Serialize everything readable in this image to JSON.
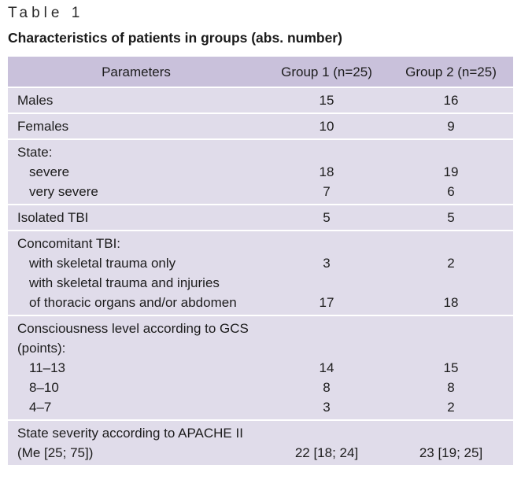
{
  "table_label": "Table 1",
  "caption": "Characteristics of patients in groups (abs. number)",
  "headers": [
    "Parameters",
    "Group 1 (n=25)",
    "Group 2 (n=25)"
  ],
  "rows": {
    "males": {
      "param": [
        "Males"
      ],
      "g1": [
        "15"
      ],
      "g2": [
        "16"
      ]
    },
    "females": {
      "param": [
        "Females"
      ],
      "g1": [
        "10"
      ],
      "g2": [
        "9"
      ]
    },
    "state": {
      "param": [
        "State:",
        "severe",
        "very severe"
      ],
      "g1": [
        "",
        "18",
        "7"
      ],
      "g2": [
        "",
        "19",
        "6"
      ]
    },
    "isolated": {
      "param": [
        "Isolated TBI"
      ],
      "g1": [
        "5"
      ],
      "g2": [
        "5"
      ]
    },
    "concomitant": {
      "param": [
        "Concomitant TBI:",
        "with skeletal trauma only",
        "with skeletal trauma and injuries",
        "of thoracic organs and/or abdomen"
      ],
      "g1": [
        "",
        "3",
        "",
        "17"
      ],
      "g2": [
        "",
        "2",
        "",
        "18"
      ]
    },
    "gcs": {
      "param": [
        "Consciousness level according to GCS",
        "(points):",
        "11–13",
        "8–10",
        "4–7"
      ],
      "g1": [
        "",
        "",
        "14",
        "8",
        "3"
      ],
      "g2": [
        "",
        "",
        "15",
        "8",
        "2"
      ]
    },
    "apache": {
      "param": [
        "State severity according to APACHE II",
        "(Me [25; 75])"
      ],
      "g1": [
        "",
        "22 [18; 24]"
      ],
      "g2": [
        "",
        "23 [19; 25]"
      ]
    }
  }
}
